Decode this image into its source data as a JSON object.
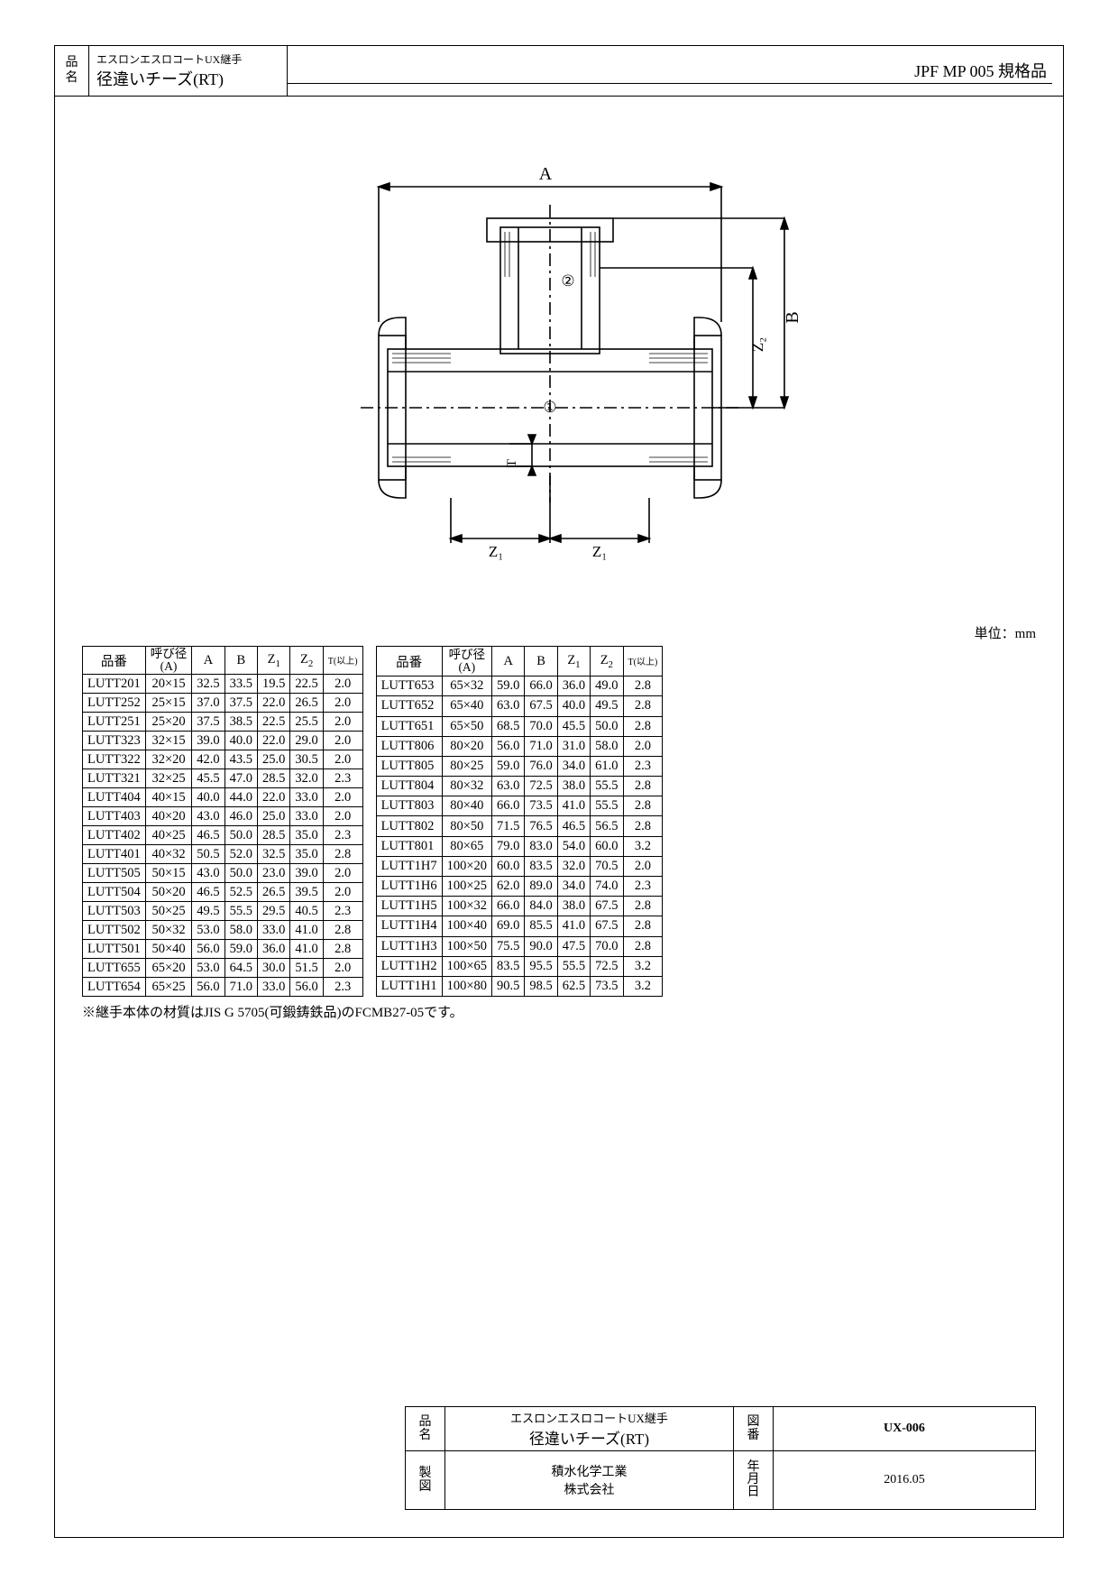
{
  "header": {
    "label": "品名",
    "series": "エスロンエスロコートUX継手",
    "product": "径違いチーズ(RT)",
    "spec": "JPF MP 005 規格品"
  },
  "diagram": {
    "dim_A": "A",
    "dim_B": "B",
    "dim_Z1": "Z₁",
    "dim_Z2": "Z₂",
    "dim_T": "T",
    "mark1": "①",
    "mark2": "②"
  },
  "unit_label": "単位：mm",
  "table": {
    "columns": {
      "part_no": "品番",
      "nominal_top": "呼び径",
      "nominal_bottom": "(A)",
      "A": "A",
      "B": "B",
      "Z1_html": "Z<sub>1</sub>",
      "Z2_html": "Z<sub>2</sub>",
      "T": "T(以上)"
    },
    "left_rows": [
      [
        "LUTT201",
        "20×15",
        "32.5",
        "33.5",
        "19.5",
        "22.5",
        "2.0"
      ],
      [
        "LUTT252",
        "25×15",
        "37.0",
        "37.5",
        "22.0",
        "26.5",
        "2.0"
      ],
      [
        "LUTT251",
        "25×20",
        "37.5",
        "38.5",
        "22.5",
        "25.5",
        "2.0"
      ],
      [
        "LUTT323",
        "32×15",
        "39.0",
        "40.0",
        "22.0",
        "29.0",
        "2.0"
      ],
      [
        "LUTT322",
        "32×20",
        "42.0",
        "43.5",
        "25.0",
        "30.5",
        "2.0"
      ],
      [
        "LUTT321",
        "32×25",
        "45.5",
        "47.0",
        "28.5",
        "32.0",
        "2.3"
      ],
      [
        "LUTT404",
        "40×15",
        "40.0",
        "44.0",
        "22.0",
        "33.0",
        "2.0"
      ],
      [
        "LUTT403",
        "40×20",
        "43.0",
        "46.0",
        "25.0",
        "33.0",
        "2.0"
      ],
      [
        "LUTT402",
        "40×25",
        "46.5",
        "50.0",
        "28.5",
        "35.0",
        "2.3"
      ],
      [
        "LUTT401",
        "40×32",
        "50.5",
        "52.0",
        "32.5",
        "35.0",
        "2.8"
      ],
      [
        "LUTT505",
        "50×15",
        "43.0",
        "50.0",
        "23.0",
        "39.0",
        "2.0"
      ],
      [
        "LUTT504",
        "50×20",
        "46.5",
        "52.5",
        "26.5",
        "39.5",
        "2.0"
      ],
      [
        "LUTT503",
        "50×25",
        "49.5",
        "55.5",
        "29.5",
        "40.5",
        "2.3"
      ],
      [
        "LUTT502",
        "50×32",
        "53.0",
        "58.0",
        "33.0",
        "41.0",
        "2.8"
      ],
      [
        "LUTT501",
        "50×40",
        "56.0",
        "59.0",
        "36.0",
        "41.0",
        "2.8"
      ],
      [
        "LUTT655",
        "65×20",
        "53.0",
        "64.5",
        "30.0",
        "51.5",
        "2.0"
      ],
      [
        "LUTT654",
        "65×25",
        "56.0",
        "71.0",
        "33.0",
        "56.0",
        "2.3"
      ]
    ],
    "right_rows": [
      [
        "LUTT653",
        "65×32",
        "59.0",
        "66.0",
        "36.0",
        "49.0",
        "2.8"
      ],
      [
        "LUTT652",
        "65×40",
        "63.0",
        "67.5",
        "40.0",
        "49.5",
        "2.8"
      ],
      [
        "LUTT651",
        "65×50",
        "68.5",
        "70.0",
        "45.5",
        "50.0",
        "2.8"
      ],
      [
        "LUTT806",
        "80×20",
        "56.0",
        "71.0",
        "31.0",
        "58.0",
        "2.0"
      ],
      [
        "LUTT805",
        "80×25",
        "59.0",
        "76.0",
        "34.0",
        "61.0",
        "2.3"
      ],
      [
        "LUTT804",
        "80×32",
        "63.0",
        "72.5",
        "38.0",
        "55.5",
        "2.8"
      ],
      [
        "LUTT803",
        "80×40",
        "66.0",
        "73.5",
        "41.0",
        "55.5",
        "2.8"
      ],
      [
        "LUTT802",
        "80×50",
        "71.5",
        "76.5",
        "46.5",
        "56.5",
        "2.8"
      ],
      [
        "LUTT801",
        "80×65",
        "79.0",
        "83.0",
        "54.0",
        "60.0",
        "3.2"
      ],
      [
        "LUTT1H7",
        "100×20",
        "60.0",
        "83.5",
        "32.0",
        "70.5",
        "2.0"
      ],
      [
        "LUTT1H6",
        "100×25",
        "62.0",
        "89.0",
        "34.0",
        "74.0",
        "2.3"
      ],
      [
        "LUTT1H5",
        "100×32",
        "66.0",
        "84.0",
        "38.0",
        "67.5",
        "2.8"
      ],
      [
        "LUTT1H4",
        "100×40",
        "69.0",
        "85.5",
        "41.0",
        "67.5",
        "2.8"
      ],
      [
        "LUTT1H3",
        "100×50",
        "75.5",
        "90.0",
        "47.5",
        "70.0",
        "2.8"
      ],
      [
        "LUTT1H2",
        "100×65",
        "83.5",
        "95.5",
        "55.5",
        "72.5",
        "3.2"
      ],
      [
        "LUTT1H1",
        "100×80",
        "90.5",
        "98.5",
        "62.5",
        "73.5",
        "3.2"
      ]
    ]
  },
  "note": "※継手本体の材質はJIS G 5705(可鍛鋳鉄品)のFCMB27-05です。",
  "title_block": {
    "label_name": "品名",
    "series": "エスロンエスロコートUX継手",
    "product": "径違いチーズ(RT)",
    "label_drawing": "図番",
    "drawing_no": "UX-006",
    "label_drawn": "製図",
    "company_line1": "積水化学工業",
    "company_line2": "株式会社",
    "label_date": "年月日",
    "date": "2016.05"
  }
}
